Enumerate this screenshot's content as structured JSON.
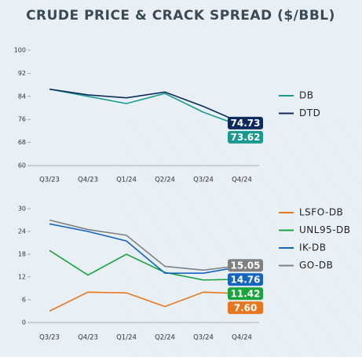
{
  "chart_data": [
    {
      "type": "line",
      "title": "CRUDE PRICE & CRACK SPREAD ($/BBL)",
      "categories": [
        "Q3/23",
        "Q4/23",
        "Q1/24",
        "Q2/24",
        "Q3/24",
        "Q4/24"
      ],
      "ylim": [
        60,
        100
      ],
      "yticks": [
        60,
        68,
        76,
        84,
        92,
        100
      ],
      "grid": false,
      "legend": "right",
      "series": [
        {
          "name": "DB",
          "color": "#1a9a8e",
          "values": [
            86.5,
            84,
            81.5,
            85,
            78.5,
            73.62
          ],
          "value_labels": [
            null,
            null,
            null,
            null,
            null,
            "73.62"
          ]
        },
        {
          "name": "DTD",
          "color": "#0d2a5e",
          "values": [
            86.5,
            84.5,
            83.5,
            85.5,
            80.5,
            74.73
          ],
          "value_labels": [
            null,
            null,
            null,
            null,
            null,
            "74.73"
          ]
        }
      ]
    },
    {
      "type": "line",
      "categories": [
        "Q3/23",
        "Q4/23",
        "Q1/24",
        "Q2/24",
        "Q3/24",
        "Q4/24"
      ],
      "ylim": [
        0,
        30
      ],
      "yticks": [
        0,
        6,
        12,
        18,
        24,
        30
      ],
      "grid": false,
      "legend": "right",
      "series": [
        {
          "name": "LSFO-DB",
          "color": "#e8761e",
          "values": [
            3,
            8,
            7.8,
            4.2,
            8,
            7.6
          ],
          "value_labels": [
            null,
            null,
            null,
            null,
            null,
            "7.60"
          ]
        },
        {
          "name": "UNL95-DB",
          "color": "#1aa33a",
          "values": [
            19,
            12.5,
            18,
            13.2,
            11.2,
            11.42
          ],
          "value_labels": [
            null,
            null,
            null,
            null,
            null,
            "11.42"
          ]
        },
        {
          "name": "IK-DB",
          "color": "#1565c0",
          "values": [
            26,
            24,
            21.5,
            13,
            13,
            14.76
          ],
          "value_labels": [
            null,
            null,
            null,
            null,
            null,
            "14.76"
          ]
        },
        {
          "name": "GO-DB",
          "color": "#808080",
          "values": [
            27,
            24.5,
            23,
            14.8,
            13.8,
            15.05
          ],
          "value_labels": [
            null,
            null,
            null,
            null,
            null,
            "15.05"
          ]
        }
      ]
    }
  ]
}
